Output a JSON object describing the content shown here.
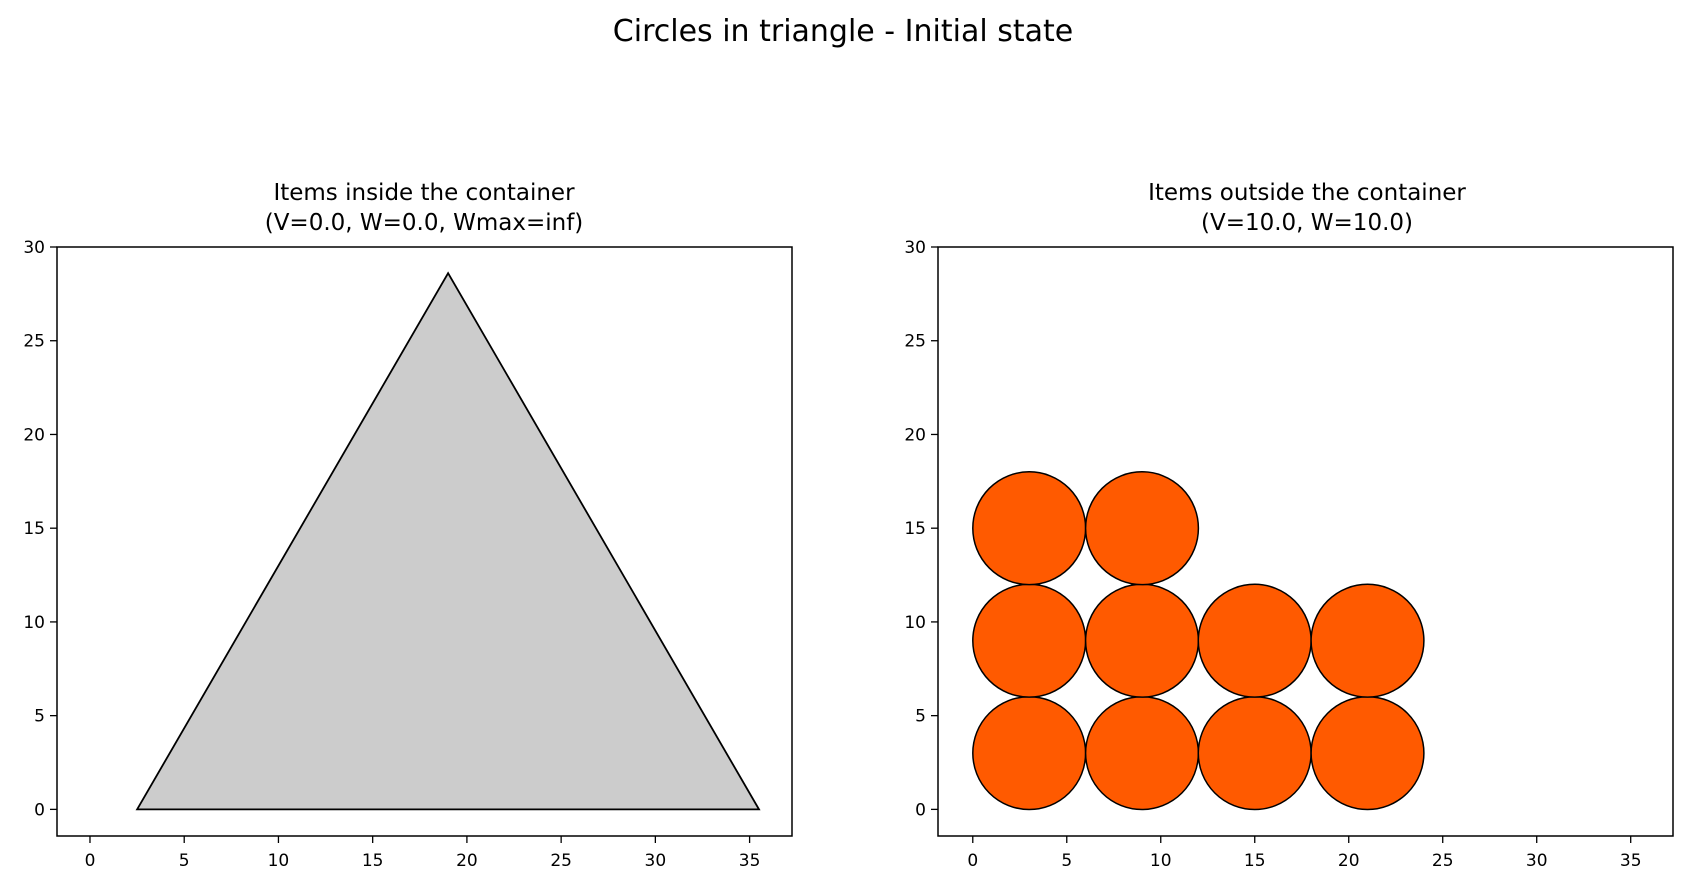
{
  "suptitle": "Circles in triangle - Initial state",
  "chart_data": [
    {
      "type": "scatter",
      "title_line1": "Items inside the container",
      "title_line2": "(V=0.0, W=0.0, Wmax=inf)",
      "xlabel": "",
      "ylabel": "",
      "xlim": [
        -1.75,
        37.25
      ],
      "ylim": [
        -1.42,
        30
      ],
      "xticks": [
        0,
        5,
        10,
        15,
        20,
        25,
        30,
        35
      ],
      "yticks": [
        0,
        5,
        10,
        15,
        20,
        25,
        30
      ],
      "grid": false,
      "container": {
        "shape": "triangle",
        "vertices": [
          [
            2.5,
            0
          ],
          [
            19,
            28.6
          ],
          [
            35.5,
            0
          ]
        ],
        "fill": "#cccccc",
        "edge": "#000000"
      },
      "items": []
    },
    {
      "type": "scatter",
      "title_line1": "Items outside the container",
      "title_line2": "(V=10.0, W=10.0)",
      "xlabel": "",
      "ylabel": "",
      "xlim": [
        -1.85,
        37.25
      ],
      "ylim": [
        -1.42,
        30
      ],
      "xticks": [
        0,
        5,
        10,
        15,
        20,
        25,
        30,
        35
      ],
      "yticks": [
        0,
        5,
        10,
        15,
        20,
        25,
        30
      ],
      "grid": false,
      "item_fill": "#ff5a00",
      "item_edge": "#000000",
      "items": [
        {
          "x": 3,
          "y": 3,
          "r": 3
        },
        {
          "x": 9,
          "y": 3,
          "r": 3
        },
        {
          "x": 15,
          "y": 3,
          "r": 3
        },
        {
          "x": 21,
          "y": 3,
          "r": 3
        },
        {
          "x": 3,
          "y": 9,
          "r": 3
        },
        {
          "x": 9,
          "y": 9,
          "r": 3
        },
        {
          "x": 15,
          "y": 9,
          "r": 3
        },
        {
          "x": 21,
          "y": 9,
          "r": 3
        },
        {
          "x": 3,
          "y": 15,
          "r": 3
        },
        {
          "x": 9,
          "y": 15,
          "r": 3
        }
      ]
    }
  ]
}
